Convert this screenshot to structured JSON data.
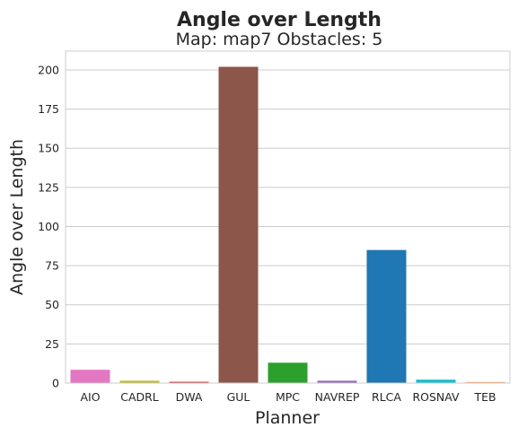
{
  "chart_data": {
    "type": "bar",
    "title": "Angle over Length",
    "subtitle": "Map: map7 Obstacles: 5",
    "xlabel": "Planner",
    "ylabel": "Angle over Length",
    "categories": [
      "AIO",
      "CADRL",
      "DWA",
      "GUL",
      "MPC",
      "NAVREP",
      "RLCA",
      "ROSNAV",
      "TEB"
    ],
    "values": [
      8.5,
      1.5,
      0.8,
      202,
      13,
      1.5,
      85,
      2.2,
      0.7
    ],
    "colors": [
      "#e377c2",
      "#bcbd22",
      "#d62728",
      "#8c564b",
      "#2ca02c",
      "#9467bd",
      "#1f77b4",
      "#17becf",
      "#ff9f60"
    ],
    "yticks": [
      0,
      25,
      50,
      75,
      100,
      125,
      150,
      175,
      200
    ],
    "ylim": [
      0,
      212
    ],
    "grid": true
  }
}
